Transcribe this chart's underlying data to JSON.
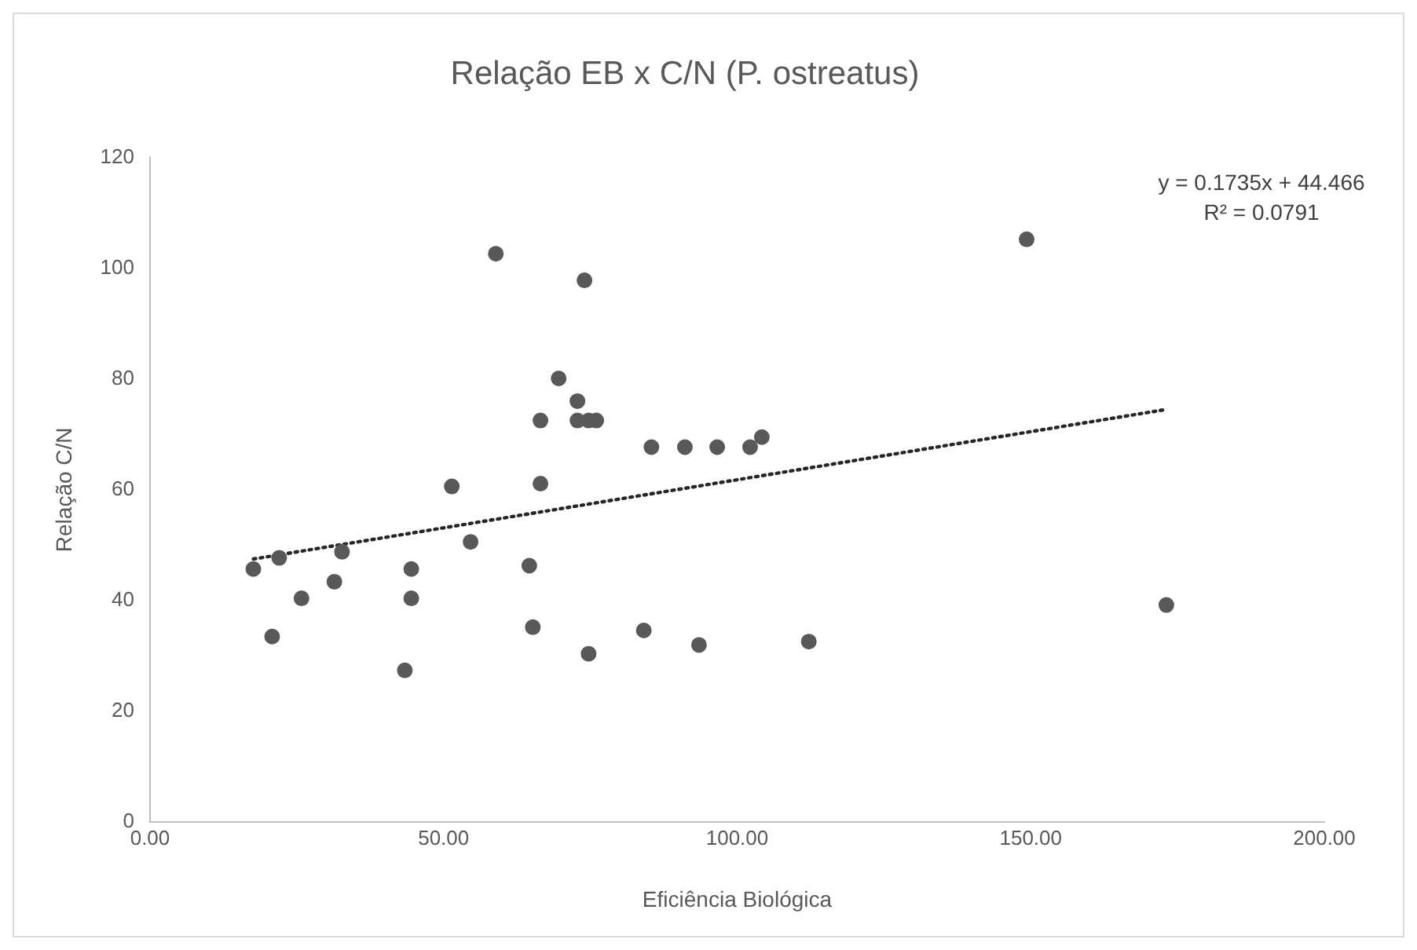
{
  "chart_data": {
    "type": "scatter",
    "title": "Relação EB x C/N (P. ostreatus)",
    "xlabel": "Eficiência Biológica",
    "ylabel": "Relação C/N",
    "xlim": [
      0,
      200
    ],
    "xticks": [
      {
        "value": 0,
        "label": "0.00"
      },
      {
        "value": 50,
        "label": "50.00"
      },
      {
        "value": 100,
        "label": "100.00"
      },
      {
        "value": 150,
        "label": "150.00"
      },
      {
        "value": 200,
        "label": "200.00"
      }
    ],
    "ylim": [
      0,
      120
    ],
    "yticks": [
      0,
      20,
      40,
      60,
      80,
      100,
      120
    ],
    "grid": false,
    "legend": false,
    "marker": "circle",
    "series": [
      {
        "type": "scatter",
        "color": "#595959",
        "x": [
          17.6,
          22.0,
          20.8,
          25.8,
          31.4,
          32.7,
          44.5,
          44.5,
          43.4,
          51.4,
          54.6,
          58.9,
          64.6,
          66.5,
          66.5,
          65.2,
          69.6,
          72.8,
          72.8,
          74.7,
          76.0,
          74.0,
          74.7,
          84.1,
          85.4,
          91.1,
          96.6,
          102.2,
          104.2,
          149.3,
          93.5,
          112.2,
          173.1
        ],
        "values": [
          45.7,
          47.7,
          33.5,
          40.4,
          43.4,
          48.8,
          45.7,
          40.4,
          27.4,
          60.6,
          50.6,
          102.6,
          46.3,
          61.1,
          72.5,
          35.2,
          80.1,
          76.0,
          72.5,
          72.5,
          72.5,
          97.8,
          30.4,
          34.6,
          67.7,
          67.7,
          67.7,
          67.7,
          69.5,
          105.2,
          32.0,
          32.6,
          39.2
        ]
      },
      {
        "type": "line",
        "color": "#262626",
        "line_style": "dotted",
        "marker": "none",
        "x": [
          17.6,
          173.1
        ],
        "values": [
          47.5,
          74.5
        ]
      }
    ],
    "annotations": [
      "y = 0.1735x + 44.466",
      "R² = 0.0791"
    ]
  }
}
